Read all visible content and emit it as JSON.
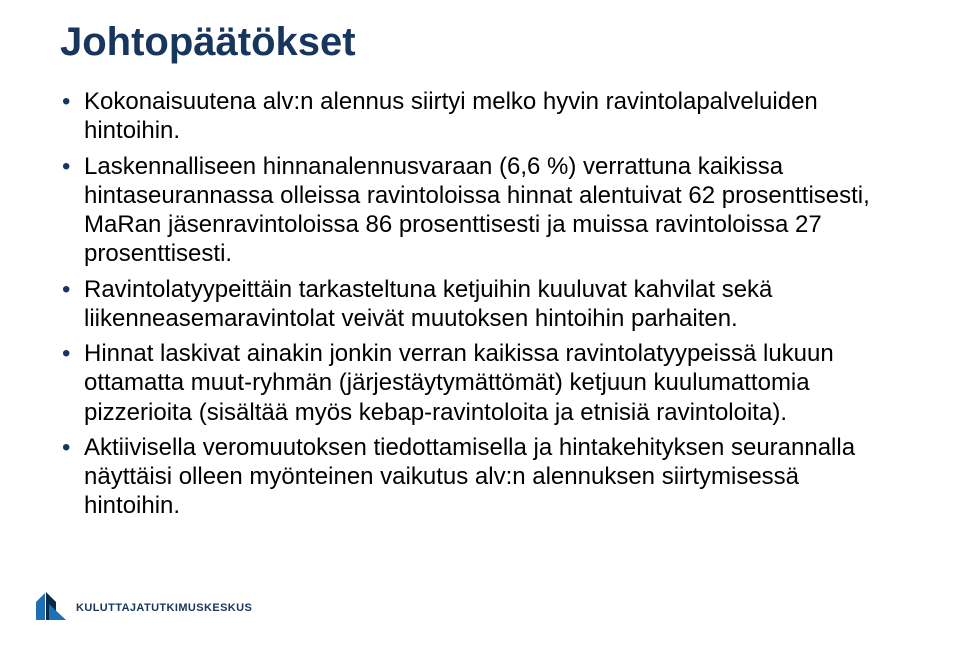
{
  "title": {
    "text": "Johtopäätökset",
    "color": "#17365d",
    "fontsize": 40
  },
  "body": {
    "color": "#000000",
    "fontsize": 24,
    "line_height": 1.22,
    "bullet_color": "#17365d",
    "items": [
      "Kokonaisuutena alv:n alennus siirtyi melko hyvin ravintolapalveluiden hintoihin.",
      "Laskennalliseen hinnanalennusvaraan (6,6 %) verrattuna kaikissa hintaseurannassa olleissa ravintoloissa hinnat alentuivat 62 prosenttisesti, MaRan jäsenravintoloissa 86 prosenttisesti ja muissa ravintoloissa 27 prosenttisesti.",
      "Ravintolatyypeittäin tarkasteltuna ketjuihin kuuluvat kahvilat sekä liikenneasemaravintolat veivät muutoksen hintoihin parhaiten.",
      "Hinnat laskivat ainakin jonkin verran kaikissa ravintolatyypeissä lukuun ottamatta muut-ryhmän (järjestäytymättömät) ketjuun kuulumattomia pizzerioita (sisältää myös kebap-ravintoloita ja etnisiä ravintoloita).",
      "Aktiivisella veromuutoksen tiedottamisella ja hintakehityksen seurannalla näyttäisi olleen myönteinen vaikutus alv:n alennuksen siirtymisessä hintoihin."
    ]
  },
  "logo": {
    "text": "KULUTTAJATUTKIMUSKESKUS",
    "text_color": "#17365d",
    "text_fontsize": 11,
    "mark_blue": "#1f6fb5",
    "mark_dark": "#0a2a4a"
  },
  "background_color": "#ffffff"
}
